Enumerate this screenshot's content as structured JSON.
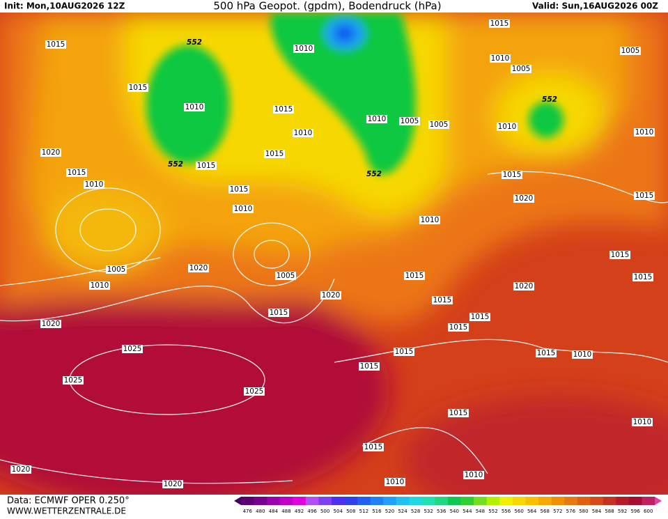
{
  "header": {
    "init": "Init: Mon,10AUG2026 12Z",
    "title": "500 hPa Geopot. (gpdm), Bodendruck (hPa)",
    "valid": "Valid: Sun,16AUG2026 00Z"
  },
  "footer": {
    "source": "Data: ECMWF OPER 0.250°",
    "website": "WWW.WETTERZENTRALE.DE"
  },
  "colorbar": {
    "labels": [
      476,
      480,
      484,
      488,
      492,
      496,
      500,
      504,
      508,
      512,
      516,
      520,
      524,
      528,
      532,
      536,
      540,
      544,
      548,
      552,
      556,
      560,
      564,
      568,
      572,
      576,
      580,
      584,
      588,
      592,
      596,
      600
    ]
  },
  "isobar_labels": [
    "1015",
    "1015",
    "1010",
    "552",
    "552",
    "1015",
    "1020",
    "1015",
    "1010",
    "1015",
    "1010",
    "1005",
    "1010",
    "1020",
    "1005",
    "1015",
    "1020",
    "1020",
    "1025",
    "1025",
    "1025",
    "1020",
    "1020",
    "1010",
    "1015",
    "1010",
    "1015",
    "1010",
    "1005",
    "1005",
    "552",
    "1015",
    "1010",
    "1005",
    "1005",
    "552",
    "1010",
    "1010",
    "1015",
    "1020",
    "1015",
    "1010",
    "1015",
    "1015",
    "1015",
    "1015",
    "1020",
    "1015",
    "1015",
    "1015",
    "1015",
    "1015",
    "1010",
    "1010",
    "1015",
    "1015",
    "1010",
    "1010"
  ]
}
